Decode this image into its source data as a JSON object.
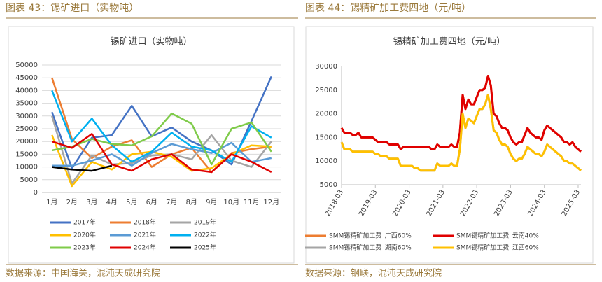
{
  "chart_data": [
    {
      "type": "line",
      "figure_label": "图表 43：锡矿进口（实物吨）",
      "title": "锡矿进口（实物吨）",
      "source": "数据来源：中国海关，混沌天成研究院",
      "categories": [
        "1月",
        "2月",
        "3月",
        "4月",
        "5月",
        "6月",
        "7月",
        "8月",
        "9月",
        "10月",
        "11月",
        "12月"
      ],
      "ylim": [
        0,
        50000
      ],
      "yticks": [
        0,
        5000,
        10000,
        15000,
        20000,
        25000,
        30000,
        35000,
        40000,
        45000,
        50000
      ],
      "grid": true,
      "series": [
        {
          "name": "2017年",
          "color": "#4472c4",
          "values": [
            31500,
            9500,
            21500,
            22500,
            34000,
            22000,
            25500,
            20000,
            16500,
            11000,
            28000,
            45500
          ]
        },
        {
          "name": "2018年",
          "color": "#ed7d31",
          "values": [
            45000,
            21000,
            13500,
            18000,
            20500,
            10000,
            15000,
            17500,
            8000,
            15500,
            17000,
            18000
          ]
        },
        {
          "name": "2019年",
          "color": "#a5a5a5",
          "values": [
            30000,
            3500,
            14500,
            11000,
            11500,
            14500,
            15000,
            13000,
            22500,
            12500,
            10000,
            20000
          ]
        },
        {
          "name": "2020年",
          "color": "#ffc000",
          "values": [
            22500,
            2500,
            12000,
            9000,
            15000,
            16000,
            14000,
            8500,
            9500,
            15000,
            18500,
            18000
          ]
        },
        {
          "name": "2021年",
          "color": "#5b9bd5",
          "values": [
            10500,
            10500,
            12500,
            15000,
            10500,
            15500,
            19000,
            17000,
            15500,
            19500,
            12000,
            13500
          ]
        },
        {
          "name": "2022年",
          "color": "#00b0f0",
          "values": [
            40000,
            20000,
            29000,
            18500,
            12000,
            16000,
            23500,
            18000,
            16500,
            12000,
            26000,
            21500
          ]
        },
        {
          "name": "2023年",
          "color": "#7fcb4a",
          "values": [
            16500,
            18000,
            21000,
            19000,
            18500,
            22000,
            31000,
            27000,
            11000,
            25000,
            27500,
            16000
          ]
        },
        {
          "name": "2024年",
          "color": "#e00000",
          "values": [
            20000,
            17500,
            23000,
            11000,
            8500,
            13000,
            15000,
            9000,
            8000,
            15000,
            12000,
            8000
          ]
        },
        {
          "name": "2025年",
          "color": "#000000",
          "values": [
            10000,
            9000,
            8500,
            10500,
            null,
            null,
            null,
            null,
            null,
            null,
            null,
            null
          ]
        }
      ]
    },
    {
      "type": "line",
      "figure_label": "图表 44：锡精矿加工费四地（元/吨）",
      "title": "锡精矿加工费四地（元/吨）",
      "source": "数据来源：钢联，混沌天成研究院",
      "x": [
        "2018-03",
        "2018-04",
        "2018-05",
        "2018-06",
        "2018-07",
        "2018-08",
        "2018-09",
        "2018-10",
        "2018-11",
        "2018-12",
        "2019-01",
        "2019-02",
        "2019-03",
        "2019-04",
        "2019-05",
        "2019-06",
        "2019-07",
        "2019-08",
        "2019-09",
        "2019-10",
        "2019-11",
        "2019-12",
        "2020-01",
        "2020-02",
        "2020-03",
        "2020-04",
        "2020-05",
        "2020-06",
        "2020-07",
        "2020-08",
        "2020-09",
        "2020-10",
        "2020-11",
        "2020-12",
        "2021-01",
        "2021-02",
        "2021-03",
        "2021-04",
        "2021-05",
        "2021-06",
        "2021-07",
        "2021-08",
        "2021-09",
        "2021-10",
        "2021-11",
        "2021-12",
        "2022-01",
        "2022-02",
        "2022-03",
        "2022-04",
        "2022-05",
        "2022-06",
        "2022-07",
        "2022-08",
        "2022-09",
        "2022-10",
        "2022-11",
        "2022-12",
        "2023-01",
        "2023-02",
        "2023-03",
        "2023-04",
        "2023-05",
        "2023-06",
        "2023-07",
        "2023-08",
        "2023-09",
        "2023-10",
        "2023-11",
        "2023-12",
        "2024-01",
        "2024-02",
        "2024-03",
        "2024-04",
        "2024-05",
        "2024-06",
        "2024-07",
        "2024-08",
        "2024-09",
        "2024-10",
        "2024-11",
        "2024-12",
        "2025-01",
        "2025-02",
        "2025-03",
        "2025-04"
      ],
      "xticks": [
        "2018-03",
        "2019-03",
        "2020-03",
        "2021-03",
        "2022-03",
        "2023-03",
        "2024-03",
        "2025-03"
      ],
      "ylim": [
        5000,
        30000
      ],
      "yticks": [
        5000,
        10000,
        15000,
        20000,
        25000,
        30000
      ],
      "grid": false,
      "series": [
        {
          "name": "SMM锡精矿加工费_广西60%",
          "color": "#ed7d31",
          "values": [
            17000,
            16000,
            16000,
            16000,
            15500,
            15500,
            16000,
            15000,
            15000,
            15000,
            15000,
            15000,
            14500,
            14000,
            14000,
            14000,
            14000,
            13500,
            13500,
            13500,
            13500,
            12500,
            13000,
            13000,
            13000,
            13000,
            13000,
            13000,
            13000,
            13000,
            13000,
            13000,
            12500,
            12500,
            13500,
            13000,
            13000,
            13000,
            13000,
            13500,
            13000,
            13000,
            16000,
            24000,
            21000,
            23000,
            22000,
            22000,
            23500,
            25000,
            25000,
            25500,
            28000,
            26000,
            20000,
            19500,
            18000,
            17000,
            17000,
            16500,
            15000,
            14000,
            13500,
            14000,
            14000,
            15500,
            17000,
            16000,
            15500,
            15000,
            15000,
            14500,
            16500,
            17500,
            17000,
            16500,
            16000,
            15500,
            15000,
            14000,
            14000,
            13500,
            14000,
            13000,
            12500,
            12000
          ]
        },
        {
          "name": "SMM锡精矿加工费_云南40%",
          "color": "#e00000",
          "values": [
            17000,
            16000,
            16000,
            16000,
            15500,
            15500,
            16000,
            15000,
            15000,
            15000,
            15000,
            15000,
            14500,
            14000,
            14000,
            14000,
            14000,
            13500,
            13500,
            13500,
            13500,
            12500,
            13000,
            13000,
            13000,
            13000,
            13000,
            13000,
            13000,
            13000,
            13000,
            13000,
            12500,
            12500,
            13500,
            13000,
            13000,
            13000,
            13000,
            13500,
            13000,
            13000,
            16000,
            24000,
            21000,
            23000,
            22000,
            22000,
            23500,
            25000,
            25000,
            25500,
            28000,
            26000,
            20000,
            19500,
            18000,
            17000,
            17000,
            16500,
            15000,
            14000,
            13500,
            14000,
            14000,
            15500,
            17000,
            16000,
            15500,
            15000,
            15000,
            14500,
            16500,
            17500,
            17000,
            16500,
            16000,
            15500,
            15000,
            14000,
            14000,
            13500,
            14000,
            13000,
            12500,
            12000
          ]
        },
        {
          "name": "SMM锡精矿加工费_湖南60%",
          "color": "#a5a5a5",
          "values": [
            14000,
            12500,
            12500,
            12500,
            12000,
            12000,
            12000,
            12000,
            12000,
            12000,
            12000,
            12000,
            11500,
            11500,
            11000,
            11000,
            11000,
            10500,
            10500,
            10500,
            10500,
            9000,
            9000,
            9000,
            9000,
            9000,
            8500,
            8500,
            8000,
            8000,
            8000,
            8000,
            8000,
            8000,
            9500,
            9000,
            9000,
            9000,
            9000,
            9500,
            9000,
            9000,
            12500,
            20000,
            17000,
            19000,
            18500,
            18000,
            19500,
            21000,
            21000,
            22000,
            24000,
            21000,
            16500,
            16000,
            14500,
            13500,
            13500,
            13000,
            11500,
            10500,
            10000,
            10500,
            10500,
            11500,
            13000,
            12500,
            12000,
            11500,
            11500,
            11000,
            12000,
            13500,
            13000,
            12500,
            12000,
            11500,
            11000,
            10000,
            10000,
            9500,
            9500,
            9000,
            8500,
            8000
          ]
        },
        {
          "name": "SMM锡精矿加工费_江西60%",
          "color": "#ffc000",
          "values": [
            14000,
            12500,
            12500,
            12500,
            12000,
            12000,
            12000,
            12000,
            12000,
            12000,
            12000,
            12000,
            11500,
            11500,
            11000,
            11000,
            11000,
            10500,
            10500,
            10500,
            10500,
            9000,
            9000,
            9000,
            9000,
            9000,
            8500,
            8500,
            8000,
            8000,
            8000,
            8000,
            8000,
            8000,
            9500,
            9000,
            9000,
            9000,
            9000,
            9500,
            9000,
            9000,
            12500,
            20000,
            17000,
            19000,
            18500,
            18000,
            19500,
            21000,
            21000,
            22000,
            24000,
            21000,
            16500,
            16000,
            14500,
            13500,
            13500,
            13000,
            11500,
            10500,
            10000,
            10500,
            10500,
            11500,
            13000,
            12500,
            12000,
            11500,
            11500,
            11000,
            12000,
            13500,
            13000,
            12500,
            12000,
            11500,
            11000,
            10000,
            10000,
            9500,
            9500,
            9000,
            8500,
            8000
          ]
        }
      ]
    }
  ]
}
